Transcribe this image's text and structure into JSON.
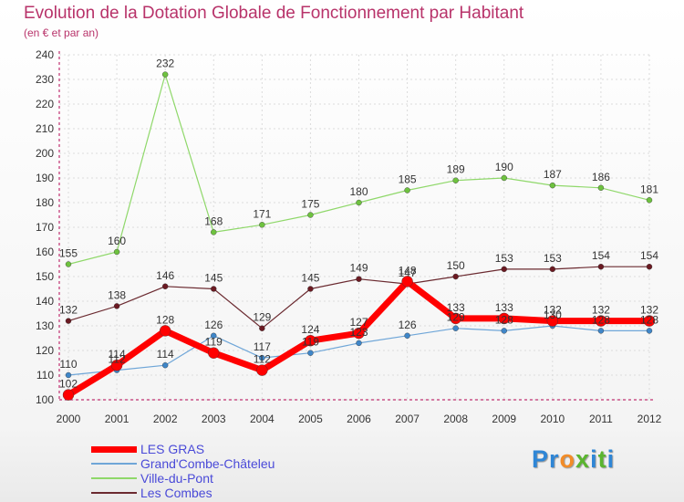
{
  "title": "Evolution de la Dotation Globale de Fonctionnement par Habitant",
  "subtitle": "(en € et par an)",
  "logo": {
    "text": "Proxiti",
    "letters": [
      {
        "ch": "P",
        "color": "#2f86d6"
      },
      {
        "ch": "r",
        "color": "#2f86d6"
      },
      {
        "ch": "o",
        "color": "#f28c28"
      },
      {
        "ch": "x",
        "color": "#5ab52f"
      },
      {
        "ch": "i",
        "color": "#2f86d6"
      },
      {
        "ch": "t",
        "color": "#5ab52f"
      },
      {
        "ch": "i",
        "color": "#2f86d6"
      }
    ]
  },
  "chart_data": {
    "type": "line",
    "x": [
      "2000",
      "2001",
      "2002",
      "2003",
      "2004",
      "2005",
      "2006",
      "2007",
      "2008",
      "2009",
      "2010",
      "2011",
      "2012"
    ],
    "ylim": [
      100,
      240
    ],
    "yticks": [
      100,
      110,
      120,
      130,
      140,
      150,
      160,
      170,
      180,
      190,
      200,
      210,
      220,
      230,
      240
    ],
    "grid": true,
    "legend_position": "bottom-left",
    "series": [
      {
        "name": "Ville-du-Pont",
        "color": "#8fd86a",
        "marker_color": "#6ec23f",
        "width": 1.2,
        "values": [
          155,
          160,
          232,
          168,
          171,
          175,
          180,
          185,
          189,
          190,
          187,
          186,
          181
        ],
        "labels": [
          "155",
          "160",
          "232",
          "168",
          "171",
          "175",
          "180",
          "185",
          "189",
          "190",
          "187",
          "186",
          "181"
        ]
      },
      {
        "name": "Les Combes",
        "color": "#6b2a30",
        "marker_color": "#6b1a22",
        "width": 1.2,
        "values": [
          132,
          138,
          146,
          145,
          129,
          145,
          149,
          147,
          150,
          153,
          153,
          154,
          154
        ],
        "labels": [
          "132",
          "138",
          "146",
          "145",
          "129",
          "145",
          "149",
          "147",
          "150",
          "153",
          "153",
          "154",
          "154"
        ]
      },
      {
        "name": "Grand'Combe-Châteleu",
        "color": "#6fa6d8",
        "marker_color": "#3f86c8",
        "width": 1.2,
        "values": [
          110,
          112,
          114,
          126,
          117,
          119,
          123,
          126,
          129,
          128,
          130,
          128,
          128
        ],
        "labels": [
          "110",
          "112",
          "114",
          "126",
          "117",
          "119",
          "123",
          "126",
          "129",
          "128",
          "130",
          "128",
          "128"
        ]
      },
      {
        "name": "LES GRAS",
        "color": "#ff0000",
        "marker_color": "#ff0000",
        "width": 7,
        "values": [
          102,
          114,
          128,
          119,
          112,
          124,
          127,
          148,
          133,
          133,
          132,
          132,
          132
        ],
        "labels": [
          "102",
          "114",
          "128",
          "119",
          "112",
          "124",
          "127",
          "148",
          "133",
          "133",
          "132",
          "132",
          "132"
        ]
      }
    ],
    "legend_order": [
      "LES GRAS",
      "Grand'Combe-Châteleu",
      "Ville-du-Pont",
      "Les Combes"
    ]
  }
}
